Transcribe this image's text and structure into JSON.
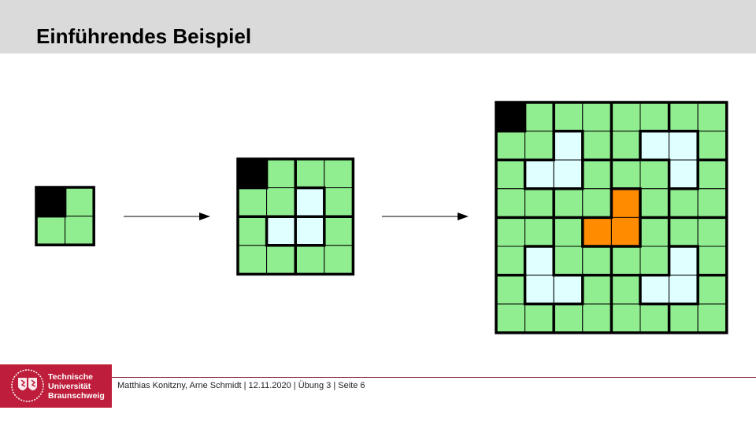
{
  "header": {
    "title": "Einführendes Beispiel"
  },
  "colors": {
    "G": "#90ee90",
    "L": "#e0ffff",
    "O": "#ff8c00",
    "B": "#000000"
  },
  "grids": [
    {
      "rows": [
        "BG",
        "GG"
      ]
    },
    {
      "rows": [
        "BGGG",
        "GGLG",
        "GLLG",
        "GGGG"
      ]
    },
    {
      "rows": [
        "BGGGGGGG",
        "GGLGGLLG",
        "GLLGGGLG",
        "GGGGOGGG",
        "GGGOOGGG",
        "GLGGGGLG",
        "GLLGGLLG",
        "GGGGGGGG"
      ]
    }
  ],
  "footer": {
    "logo_lines": [
      "Technische",
      "Universität",
      "Braunschweig"
    ],
    "text": "Matthias Konitzny, Arne Schmidt | 12.11.2020 | Übung 3 | Seite 6"
  }
}
